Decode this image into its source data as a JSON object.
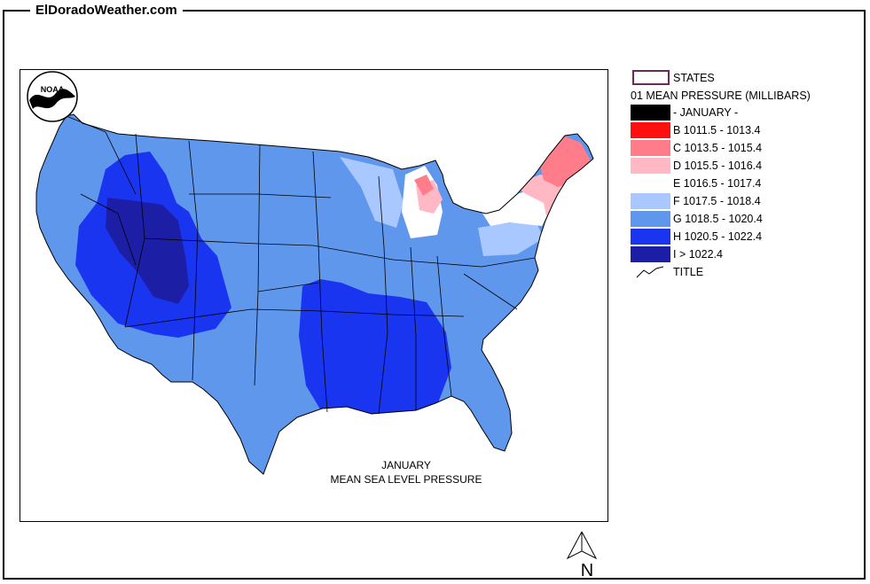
{
  "site": {
    "title": "ElDoradoWeather.com"
  },
  "map": {
    "caption_line1": "JANUARY",
    "caption_line2": "MEAN SEA LEVEL PRESSURE",
    "logo_text": "NOAA",
    "north_label": "N"
  },
  "legend": {
    "states_label": "STATES",
    "header": "01 MEAN PRESSURE (MILLIBARS)",
    "items": [
      {
        "label": "- JANUARY -",
        "color": "#000000"
      },
      {
        "label": "B 1011.5 - 1013.4",
        "color": "#ff1010"
      },
      {
        "label": "C 1013.5 - 1015.4",
        "color": "#ff7d8a"
      },
      {
        "label": "D 1015.5 - 1016.4",
        "color": "#ffb8c4"
      },
      {
        "label": "E 1016.5 - 1017.4",
        "color": "#ffffff"
      },
      {
        "label": "F 1017.5 - 1018.4",
        "color": "#a9c8ff"
      },
      {
        "label": "G 1018.5 - 1020.4",
        "color": "#5f97ec"
      },
      {
        "label": "H 1020.5 - 1022.4",
        "color": "#1a35f0"
      },
      {
        "label": "I > 1022.4",
        "color": "#1c1ea6"
      }
    ],
    "title_label": "TITLE"
  }
}
